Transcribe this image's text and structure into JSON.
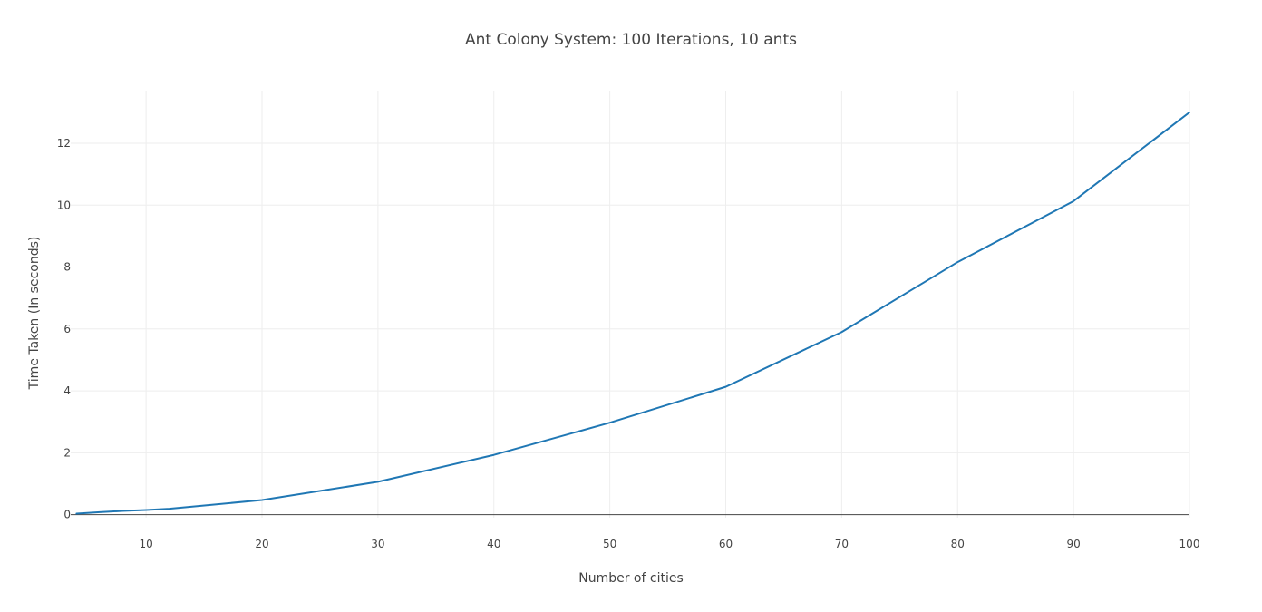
{
  "chart_data": {
    "type": "line",
    "title": "Ant Colony System: 100 Iterations, 10 ants",
    "xlabel": "Number of cities",
    "ylabel": "Time Taken (In seconds)",
    "xlim": [
      3.5,
      100
    ],
    "ylim": [
      -0.1,
      13.7
    ],
    "xticks": [
      10,
      20,
      30,
      40,
      50,
      60,
      70,
      80,
      90,
      100
    ],
    "yticks": [
      0,
      2,
      4,
      6,
      8,
      10,
      12
    ],
    "grid": true,
    "legend": "none",
    "colors": {
      "series": "#1f77b4",
      "grid": "#eeeeee",
      "zeroline": "#444444",
      "text": "#444444"
    },
    "series": [
      {
        "x": [
          4,
          6,
          8,
          10,
          12,
          20,
          30,
          40,
          50,
          60,
          70,
          80,
          90,
          100
        ],
        "y": [
          0.03,
          0.08,
          0.12,
          0.15,
          0.19,
          0.47,
          1.06,
          1.93,
          2.97,
          4.13,
          5.9,
          8.16,
          10.13,
          13.0
        ]
      }
    ]
  }
}
